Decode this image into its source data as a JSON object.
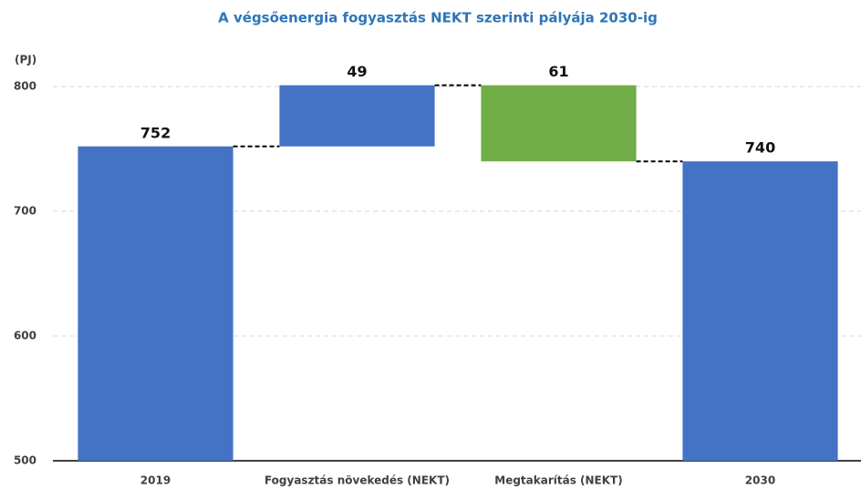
{
  "chart_data": {
    "type": "waterfall",
    "title": "A végsőenergia fogyasztás NEKT szerinti pályája 2030-ig",
    "y_label": "(PJ)",
    "categories": [
      "2019",
      "Fogyasztás növekedés (NEKT)",
      "Megtakarítás (NEKT)",
      "2030"
    ],
    "values": [
      752,
      49,
      -61,
      740
    ],
    "value_labels": [
      "752",
      "49",
      "61",
      "740"
    ],
    "measure": [
      "absolute",
      "relative",
      "relative",
      "total"
    ],
    "colors": [
      "#4472c4",
      "#4472c4",
      "#70ad47",
      "#4472c4"
    ],
    "ylim": [
      500,
      800
    ],
    "yticks": [
      500,
      600,
      700,
      800
    ],
    "grid": true
  }
}
